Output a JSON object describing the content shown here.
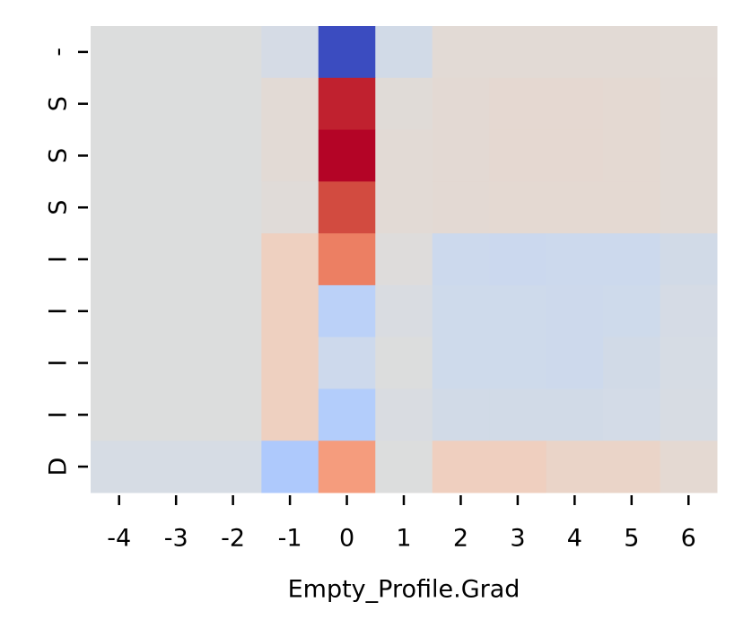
{
  "chart_data": {
    "type": "heatmap",
    "x_label": "Empty_Profile.Grad",
    "x_categories": [
      "-4",
      "-3",
      "-2",
      "-1",
      "0",
      "1",
      "2",
      "3",
      "4",
      "5",
      "6"
    ],
    "y_categories": [
      "-",
      "S",
      "S",
      "S",
      "I",
      "I",
      "I",
      "I",
      "D"
    ],
    "colors": [
      [
        "#dcdddd",
        "#dcdddd",
        "#dcdddd",
        "#d5dbe5",
        "#3b4cc0",
        "#d1dae7",
        "#e2dad5",
        "#e2dad5",
        "#e2dad5",
        "#e2dad5",
        "#e2dbd6"
      ],
      [
        "#dcdddd",
        "#dcdddd",
        "#dcdddd",
        "#e2dad5",
        "#c0212f",
        "#e0dbd7",
        "#e3d9d3",
        "#e5d8d1",
        "#e5d8d1",
        "#e4d9d2",
        "#e2dad5"
      ],
      [
        "#dcdddd",
        "#dcdddd",
        "#dcdddd",
        "#e2dad5",
        "#b40426",
        "#e2dad5",
        "#e3d9d3",
        "#e5d8d1",
        "#e5d8d1",
        "#e4d9d2",
        "#e2dad5"
      ],
      [
        "#dcdddd",
        "#dcdddd",
        "#dcdddd",
        "#e0dbd8",
        "#d24b40",
        "#e2dad5",
        "#e3d9d3",
        "#e4d9d2",
        "#e4d9d2",
        "#e4d9d2",
        "#e2dad5"
      ],
      [
        "#dcdddd",
        "#dcdddd",
        "#dcdddd",
        "#eed0c0",
        "#ec7f63",
        "#dedcdb",
        "#ccd9ed",
        "#cbd8ee",
        "#ccd9ed",
        "#ccd9ed",
        "#d1dae7"
      ],
      [
        "#dcdddd",
        "#dcdddd",
        "#dcdddd",
        "#eed0c0",
        "#bbd1f8",
        "#d9dce1",
        "#cedaeb",
        "#cedaeb",
        "#cdd9ec",
        "#cedaeb",
        "#d5dbe5"
      ],
      [
        "#dcdddd",
        "#dcdddd",
        "#dcdddd",
        "#eed0c0",
        "#cdd9ec",
        "#dcdddd",
        "#cedaeb",
        "#cedaeb",
        "#cdd9ec",
        "#d1dae7",
        "#d6dce4"
      ],
      [
        "#dcdddd",
        "#dcdddd",
        "#dcdddd",
        "#eed0c0",
        "#b3cdfb",
        "#d9dce1",
        "#d1dae7",
        "#d1dae7",
        "#d1dae7",
        "#d3dbe7",
        "#d7dce3"
      ],
      [
        "#d6dce4",
        "#d6dce4",
        "#d6dce4",
        "#aec9fc",
        "#f59c7d",
        "#dcdddd",
        "#efcfbf",
        "#efcfbf",
        "#ead4c8",
        "#ead4c8",
        "#e4d9d2"
      ]
    ]
  }
}
